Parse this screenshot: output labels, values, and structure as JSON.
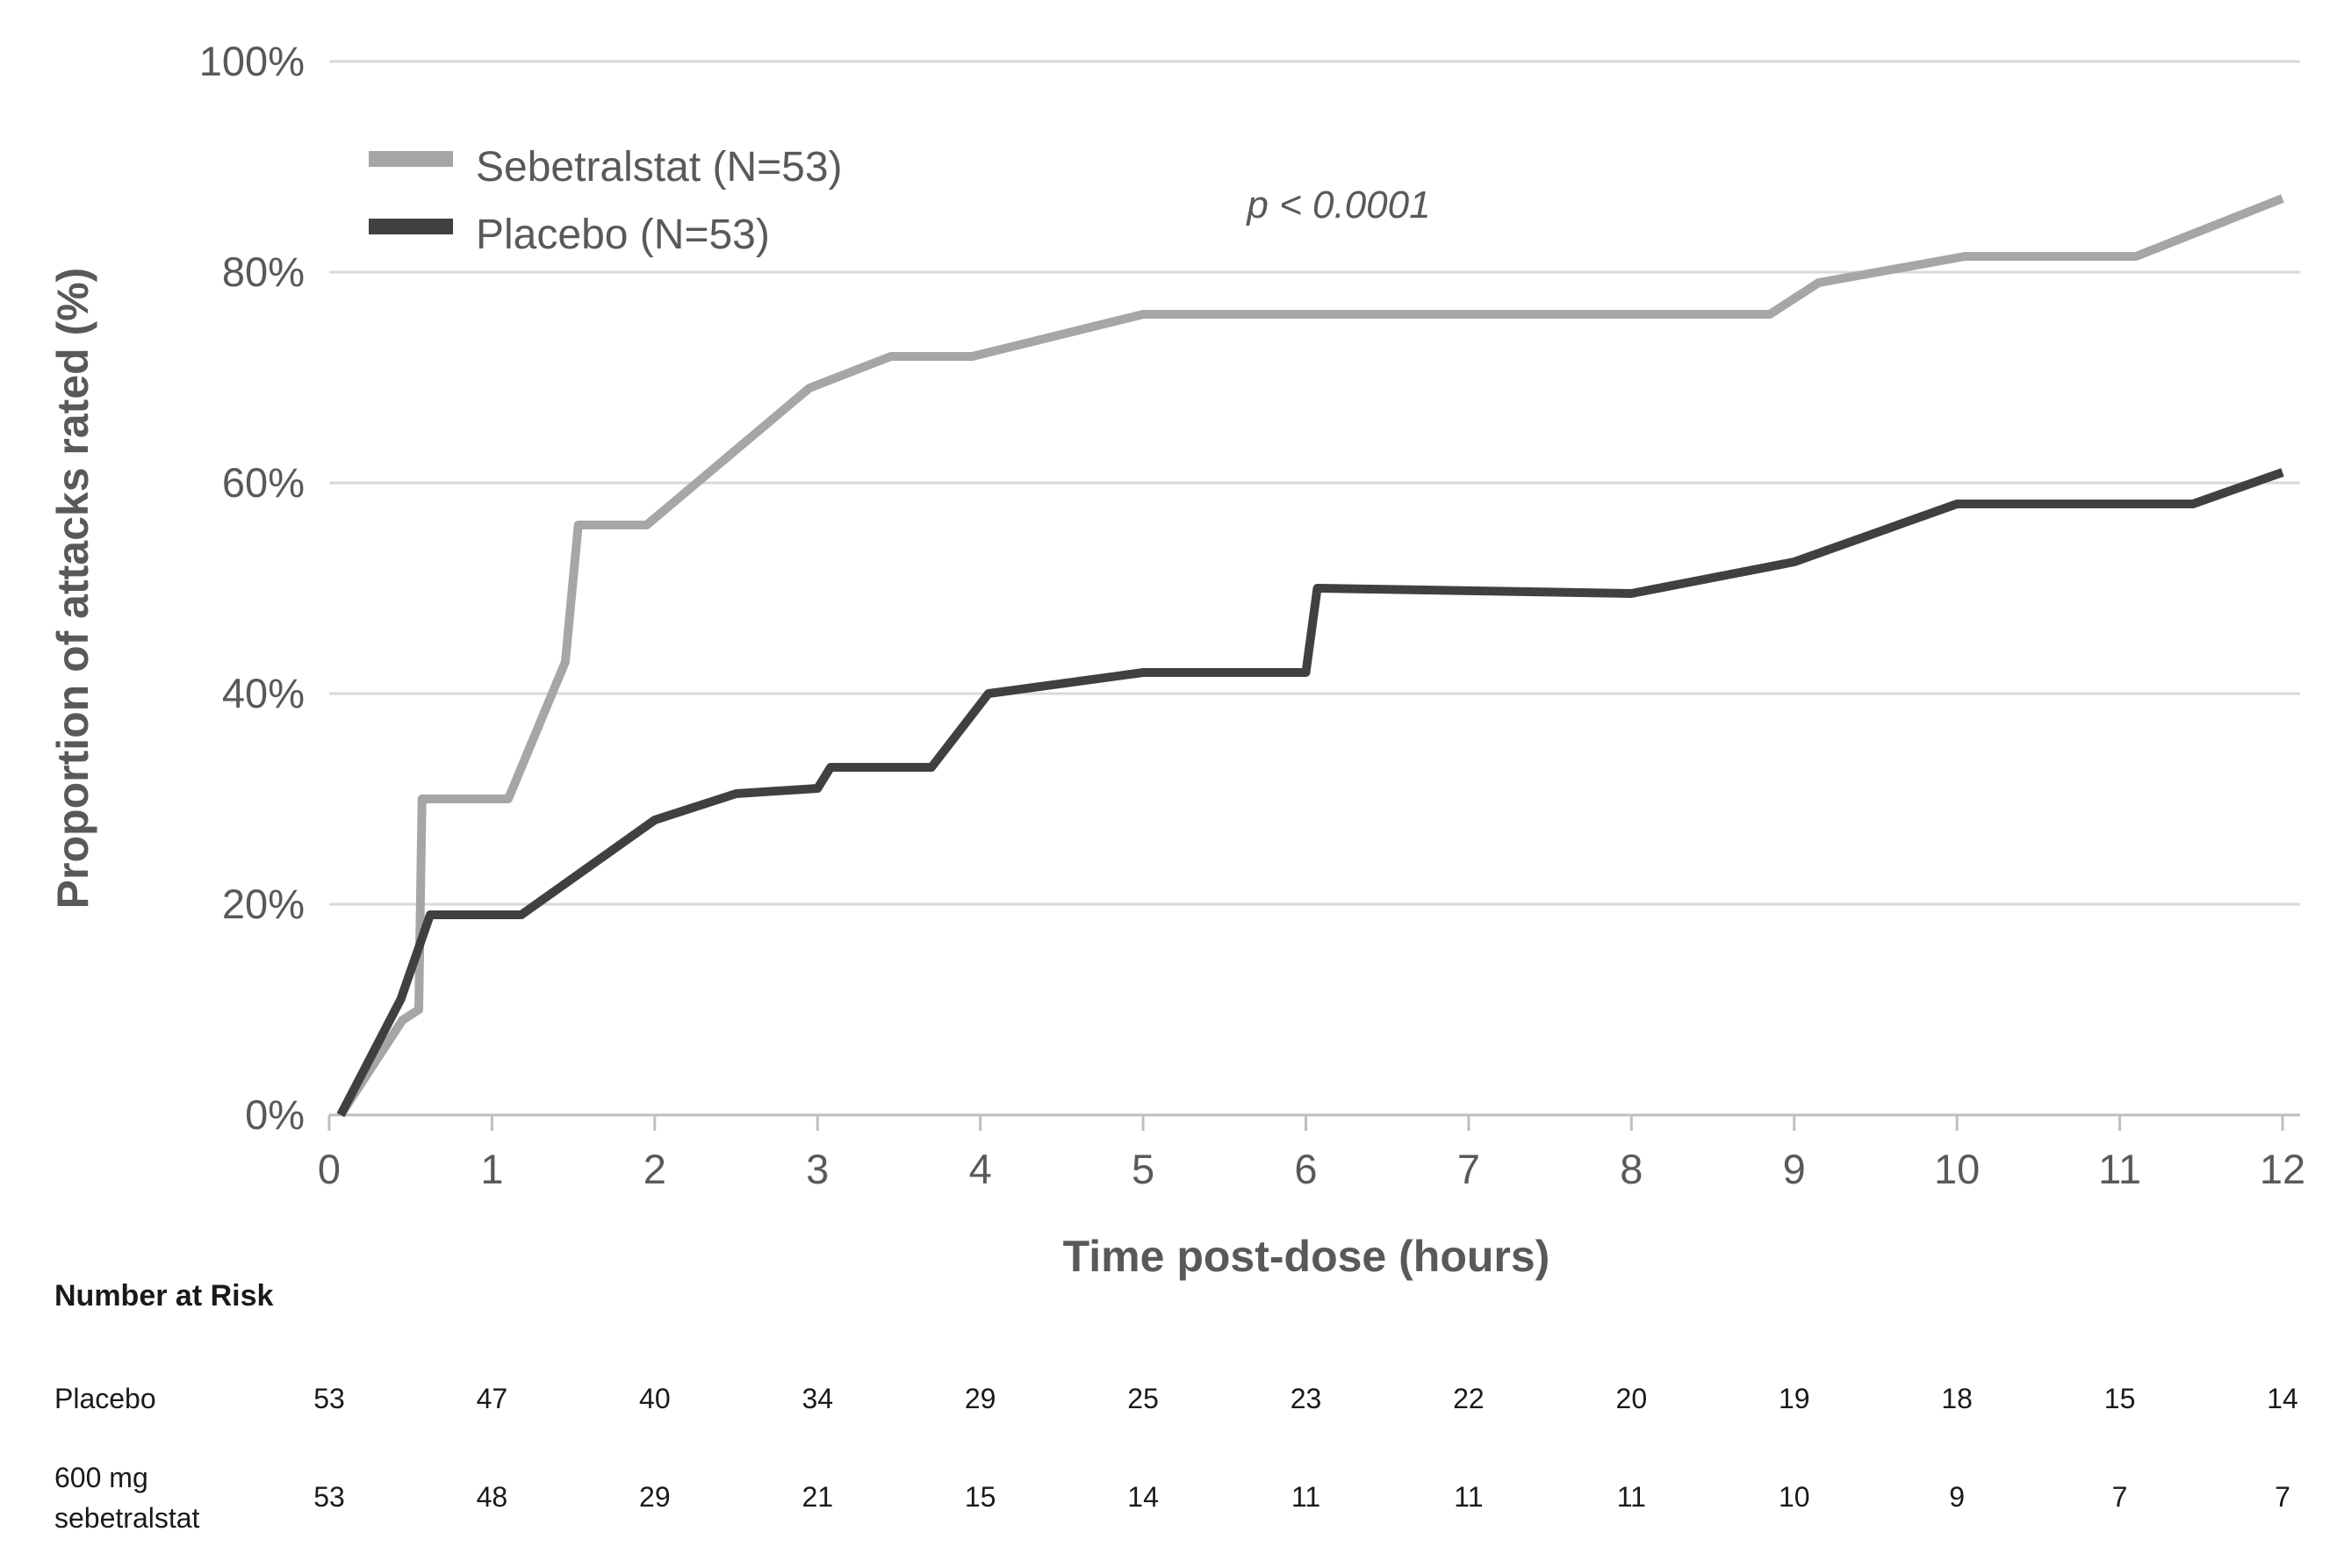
{
  "chart_data": {
    "type": "line",
    "subtype": "kaplan-meier-cumulative",
    "title": "",
    "xlabel": "Time post-dose (hours)",
    "ylabel": "Proportion of attacks rated (%)",
    "annotation": "p < 0.0001",
    "xlim": [
      0,
      12
    ],
    "ylim": [
      0,
      100
    ],
    "grid": "horizontal",
    "legend_position": "top-left-inside",
    "x_ticks": [
      0,
      1,
      2,
      3,
      4,
      5,
      6,
      7,
      8,
      9,
      10,
      11,
      12
    ],
    "y_ticks": [
      0,
      20,
      40,
      60,
      80,
      100
    ],
    "y_tick_suffix": "%",
    "series": [
      {
        "name": "Sebetralstat (N=53)",
        "color": "#a6a6a6",
        "points": [
          [
            0.07,
            0
          ],
          [
            0.45,
            9
          ],
          [
            0.55,
            10
          ],
          [
            0.57,
            30
          ],
          [
            1.1,
            30
          ],
          [
            1.45,
            43
          ],
          [
            1.53,
            56
          ],
          [
            1.95,
            56
          ],
          [
            2.95,
            69
          ],
          [
            3.45,
            72
          ],
          [
            3.95,
            72
          ],
          [
            5.0,
            76
          ],
          [
            8.85,
            76
          ],
          [
            9.15,
            79
          ],
          [
            10.05,
            81.5
          ],
          [
            11.1,
            81.5
          ],
          [
            12.0,
            87
          ]
        ]
      },
      {
        "name": "Placebo (N=53)",
        "color": "#404040",
        "points": [
          [
            0.07,
            0
          ],
          [
            0.44,
            11
          ],
          [
            0.62,
            19
          ],
          [
            1.18,
            19
          ],
          [
            2.0,
            28
          ],
          [
            2.5,
            30.5
          ],
          [
            3.0,
            31
          ],
          [
            3.08,
            33
          ],
          [
            3.7,
            33
          ],
          [
            4.05,
            40
          ],
          [
            5.0,
            42
          ],
          [
            6.0,
            42
          ],
          [
            6.07,
            50
          ],
          [
            8.0,
            49.5
          ],
          [
            9.0,
            52.5
          ],
          [
            10.0,
            58
          ],
          [
            11.45,
            58
          ],
          [
            12.0,
            61
          ]
        ]
      }
    ],
    "legend": [
      {
        "label": "Sebetralstat (N=53)",
        "color": "#a6a6a6"
      },
      {
        "label": "Placebo (N=53)",
        "color": "#404040"
      }
    ],
    "number_at_risk": {
      "header": "Number at Risk",
      "rows": [
        {
          "label": "Placebo",
          "values": [
            53,
            47,
            40,
            34,
            29,
            25,
            23,
            22,
            20,
            19,
            18,
            15,
            14
          ]
        },
        {
          "label": "600 mg sebetralstat",
          "values": [
            53,
            48,
            29,
            21,
            15,
            14,
            11,
            11,
            11,
            10,
            9,
            7,
            7
          ]
        }
      ]
    },
    "colors": {
      "sebetralstat_line": "#a6a6a6",
      "placebo_line": "#404040",
      "gridline": "#d9d9d9",
      "axis_line": "#bfbfbf",
      "tick_text": "#595959",
      "table_text": "#1a1a1a"
    }
  }
}
